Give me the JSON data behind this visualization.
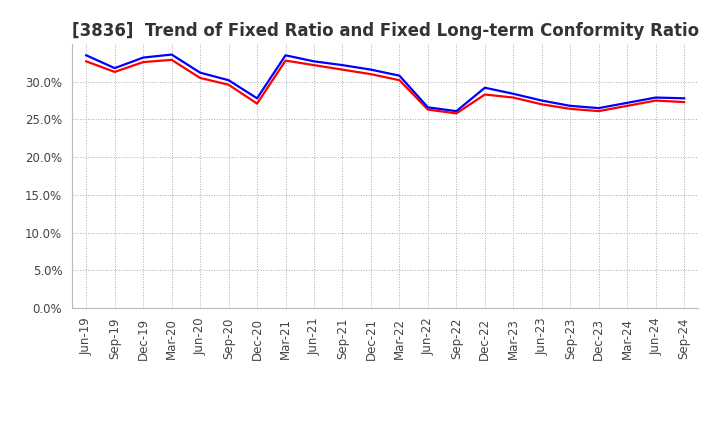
{
  "title": "[3836]  Trend of Fixed Ratio and Fixed Long-term Conformity Ratio",
  "x_labels": [
    "Jun-19",
    "Sep-19",
    "Dec-19",
    "Mar-20",
    "Jun-20",
    "Sep-20",
    "Dec-20",
    "Mar-21",
    "Jun-21",
    "Sep-21",
    "Dec-21",
    "Mar-22",
    "Jun-22",
    "Sep-22",
    "Dec-22",
    "Mar-23",
    "Jun-23",
    "Sep-23",
    "Dec-23",
    "Mar-24",
    "Jun-24",
    "Sep-24"
  ],
  "fixed_ratio": [
    33.5,
    31.8,
    33.2,
    33.6,
    31.2,
    30.2,
    27.8,
    33.5,
    32.7,
    32.2,
    31.6,
    30.8,
    26.6,
    26.1,
    29.2,
    28.4,
    27.5,
    26.8,
    26.5,
    27.2,
    27.9,
    27.8
  ],
  "fixed_lt_ratio": [
    32.7,
    31.3,
    32.6,
    32.9,
    30.5,
    29.6,
    27.1,
    32.8,
    32.2,
    31.6,
    31.0,
    30.2,
    26.3,
    25.8,
    28.3,
    27.9,
    27.0,
    26.4,
    26.1,
    26.8,
    27.5,
    27.3
  ],
  "fixed_ratio_color": "#0000FF",
  "fixed_lt_ratio_color": "#FF0000",
  "ylim": [
    0,
    35
  ],
  "yticks": [
    0.0,
    5.0,
    10.0,
    15.0,
    20.0,
    25.0,
    30.0
  ],
  "background_color": "#FFFFFF",
  "grid_color": "#AAAAAA",
  "line_width": 1.6,
  "title_fontsize": 12,
  "tick_fontsize": 8.5,
  "legend_fontsize": 9
}
